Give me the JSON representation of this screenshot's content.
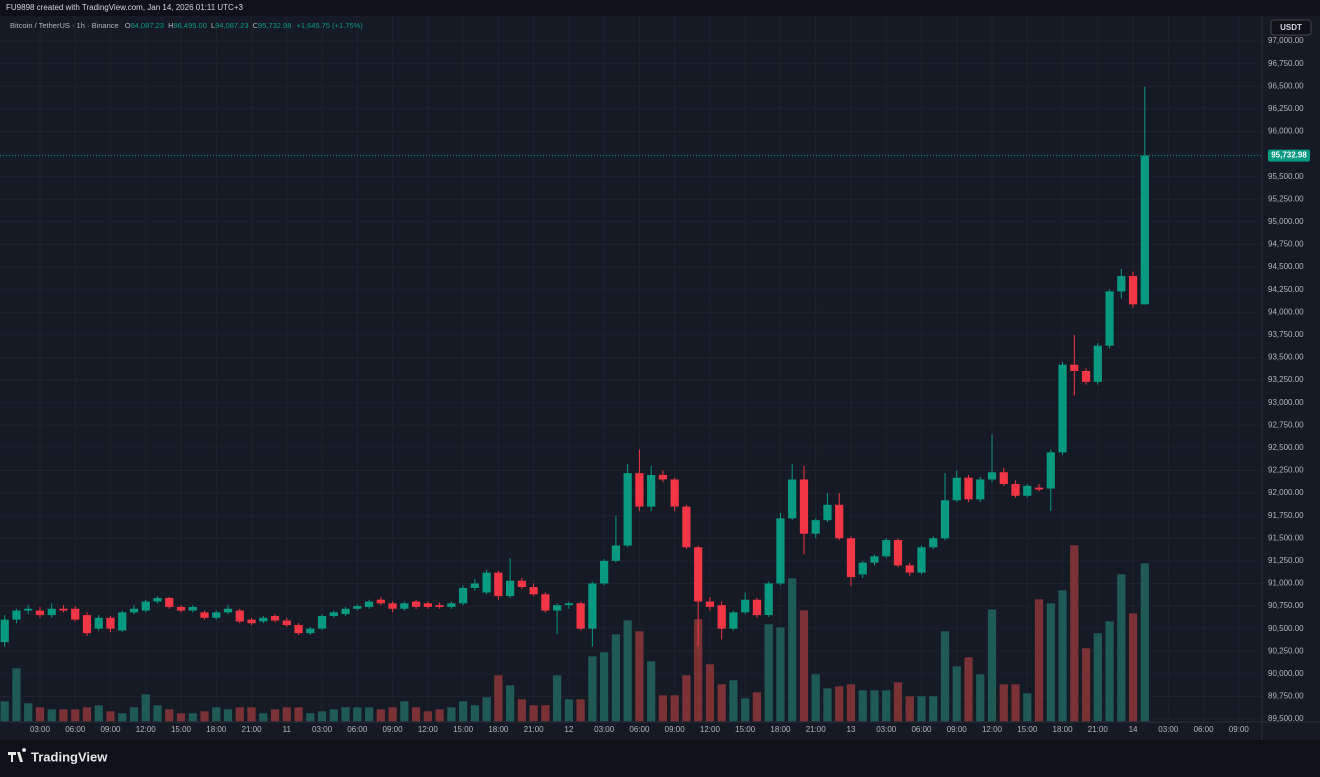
{
  "header": "FU9898 created with TradingView.com, Jan 14, 2026 01:11 UTC+3",
  "logo": "TradingView",
  "chart_data": {
    "type": "candlestick",
    "symbol": "Bitcoin / TetherUS · 1h · Binance",
    "legend": {
      "o_prefix": "O",
      "o": "94,087.23",
      "h_prefix": "H",
      "h": "96,495.00",
      "l_prefix": "L",
      "l": "94,087.23",
      "c_prefix": "C",
      "c": "95,732.98",
      "change": "+1,645.75 (+1.75%)"
    },
    "currency": "USDT",
    "last_price": 95732.98,
    "last_price_label": "95,732.98",
    "up_color": "#089981",
    "down_color": "#f23645",
    "up_volume_color": "#1f5a55",
    "down_volume_color": "#7a3237",
    "grid": true,
    "open": [
      90350,
      90600,
      90700,
      90700,
      90650,
      90720,
      90720,
      90650,
      90500,
      90620,
      90480,
      90680,
      90700,
      90800,
      90840,
      90740,
      90700,
      90680,
      90620,
      90680,
      90700,
      90600,
      90580,
      90640,
      90590,
      90540,
      90450,
      90500,
      90640,
      90660,
      90720,
      90740,
      90820,
      90780,
      90720,
      90800,
      90780,
      90760,
      90740,
      90780,
      90950,
      90900,
      91120,
      90860,
      91030,
      90960,
      90880,
      90700,
      90760,
      90780,
      90500,
      91000,
      91250,
      91420,
      92220,
      91850,
      92200,
      92150,
      91850,
      91400,
      90800,
      90760,
      90500,
      90680,
      90820,
      90650,
      91000,
      91720,
      92150,
      91550,
      91700,
      91870,
      91500,
      91100,
      91230,
      91300,
      91480,
      91200,
      91120,
      91400,
      91500,
      91920,
      92170,
      91930,
      92150,
      92230,
      92100,
      91970,
      92060,
      92050,
      92450,
      93420,
      93350,
      93230,
      93630,
      94230,
      94400,
      94087.23
    ],
    "high": [
      90650,
      90720,
      90760,
      90740,
      90780,
      90760,
      90750,
      90680,
      90650,
      90640,
      90700,
      90760,
      90820,
      90860,
      90850,
      90760,
      90760,
      90700,
      90700,
      90760,
      90720,
      90620,
      90640,
      90660,
      90620,
      90560,
      90520,
      90660,
      90700,
      90740,
      90770,
      90820,
      90850,
      90800,
      90800,
      90820,
      90800,
      90790,
      90800,
      90980,
      91050,
      91150,
      91140,
      91280,
      91060,
      91000,
      90900,
      90780,
      90800,
      90800,
      91020,
      91270,
      91750,
      92320,
      92480,
      92300,
      92250,
      92170,
      91870,
      91420,
      90850,
      90800,
      90700,
      90900,
      90840,
      91020,
      91780,
      92320,
      92300,
      91720,
      92000,
      92000,
      91520,
      91250,
      91320,
      91500,
      91500,
      91230,
      91420,
      91520,
      92220,
      92250,
      92200,
      92180,
      92650,
      92280,
      92140,
      92100,
      92100,
      92480,
      93450,
      93750,
      93380,
      93660,
      94250,
      94480,
      94450,
      96495
    ],
    "low": [
      90300,
      90560,
      90660,
      90620,
      90620,
      90680,
      90580,
      90420,
      90480,
      90460,
      90460,
      90660,
      90680,
      90780,
      90720,
      90680,
      90680,
      90600,
      90600,
      90660,
      90560,
      90540,
      90560,
      90570,
      90520,
      90430,
      90430,
      90480,
      90620,
      90640,
      90700,
      90720,
      90760,
      90680,
      90700,
      90720,
      90720,
      90720,
      90720,
      90760,
      90920,
      90880,
      90820,
      90840,
      90940,
      90860,
      90680,
      90440,
      90720,
      90480,
      90300,
      90980,
      91230,
      91400,
      91800,
      91800,
      92120,
      91800,
      91380,
      90300,
      90700,
      90380,
      90480,
      90660,
      90620,
      90630,
      90980,
      91700,
      91320,
      91500,
      91680,
      91480,
      90970,
      91060,
      91200,
      91280,
      91180,
      91080,
      91100,
      91380,
      91480,
      91900,
      91900,
      91900,
      92120,
      92080,
      91950,
      91950,
      92020,
      91800,
      92420,
      93080,
      93200,
      93200,
      93600,
      94150,
      94050,
      94087.23
    ],
    "close": [
      90600,
      90700,
      90720,
      90650,
      90720,
      90700,
      90600,
      90450,
      90620,
      90500,
      90680,
      90720,
      90800,
      90840,
      90740,
      90700,
      90740,
      90620,
      90680,
      90720,
      90580,
      90560,
      90620,
      90590,
      90540,
      90450,
      90500,
      90640,
      90680,
      90720,
      90750,
      90800,
      90780,
      90720,
      90780,
      90740,
      90740,
      90740,
      90780,
      90950,
      91000,
      91120,
      90860,
      91030,
      90960,
      90880,
      90700,
      90760,
      90780,
      90500,
      91000,
      91250,
      91420,
      92220,
      91850,
      92200,
      92150,
      91850,
      91400,
      90800,
      90740,
      90500,
      90680,
      90820,
      90650,
      91000,
      91720,
      92150,
      91550,
      91700,
      91870,
      91500,
      91070,
      91230,
      91300,
      91480,
      91200,
      91120,
      91400,
      91500,
      91920,
      92170,
      91930,
      92150,
      92230,
      92100,
      91970,
      92080,
      92040,
      92450,
      93420,
      93350,
      93230,
      93630,
      94230,
      94400,
      94087.23,
      95732.98
    ],
    "volume": [
      20,
      53,
      18,
      14,
      12,
      12,
      12,
      14,
      16,
      10,
      8,
      14,
      27,
      16,
      12,
      8,
      8,
      10,
      14,
      12,
      14,
      14,
      8,
      12,
      14,
      14,
      8,
      10,
      12,
      14,
      14,
      14,
      12,
      14,
      20,
      14,
      10,
      12,
      14,
      20,
      16,
      24,
      46,
      36,
      22,
      16,
      16,
      46,
      22,
      22,
      65,
      69,
      87,
      101,
      90,
      60,
      26,
      26,
      46,
      102,
      57,
      37,
      41,
      23,
      29,
      97,
      94,
      143,
      111,
      47,
      33,
      35,
      37,
      31,
      31,
      31,
      39,
      25,
      25,
      25,
      90,
      55,
      64,
      47,
      112,
      37,
      37,
      28,
      122,
      118,
      131,
      176,
      73,
      88,
      100,
      147,
      108,
      158
    ],
    "xlim": [
      -0.4,
      106.8
    ],
    "xticks": [
      {
        "value": 3,
        "label": "03:00"
      },
      {
        "value": 6,
        "label": "06:00"
      },
      {
        "value": 9,
        "label": "09:00"
      },
      {
        "value": 12,
        "label": "12:00"
      },
      {
        "value": 15,
        "label": "15:00"
      },
      {
        "value": 18,
        "label": "18:00"
      },
      {
        "value": 21,
        "label": "21:00"
      },
      {
        "value": 24,
        "label": "11"
      },
      {
        "value": 27,
        "label": "03:00"
      },
      {
        "value": 30,
        "label": "06:00"
      },
      {
        "value": 33,
        "label": "09:00"
      },
      {
        "value": 36,
        "label": "12:00"
      },
      {
        "value": 39,
        "label": "15:00"
      },
      {
        "value": 42,
        "label": "18:00"
      },
      {
        "value": 45,
        "label": "21:00"
      },
      {
        "value": 48,
        "label": "12"
      },
      {
        "value": 51,
        "label": "03:00"
      },
      {
        "value": 54,
        "label": "06:00"
      },
      {
        "value": 57,
        "label": "09:00"
      },
      {
        "value": 60,
        "label": "12:00"
      },
      {
        "value": 63,
        "label": "15:00"
      },
      {
        "value": 66,
        "label": "18:00"
      },
      {
        "value": 69,
        "label": "21:00"
      },
      {
        "value": 72,
        "label": "13"
      },
      {
        "value": 75,
        "label": "03:00"
      },
      {
        "value": 78,
        "label": "06:00"
      },
      {
        "value": 81,
        "label": "09:00"
      },
      {
        "value": 84,
        "label": "12:00"
      },
      {
        "value": 87,
        "label": "15:00"
      },
      {
        "value": 90,
        "label": "18:00"
      },
      {
        "value": 93,
        "label": "21:00"
      },
      {
        "value": 96,
        "label": "14"
      },
      {
        "value": 99,
        "label": "03:00"
      },
      {
        "value": 102,
        "label": "06:00"
      },
      {
        "value": 105,
        "label": "09:00"
      }
    ],
    "ylim": [
      89475,
      97120
    ],
    "yticks": [
      {
        "value": 97000,
        "label": "97,000.00"
      },
      {
        "value": 96750,
        "label": "96,750.00"
      },
      {
        "value": 96500,
        "label": "96,500.00"
      },
      {
        "value": 96250,
        "label": "96,250.00"
      },
      {
        "value": 96000,
        "label": "96,000.00"
      },
      {
        "value": 95750,
        "label": "95,750.00"
      },
      {
        "value": 95500,
        "label": "95,500.00"
      },
      {
        "value": 95250,
        "label": "95,250.00"
      },
      {
        "value": 95000,
        "label": "95,000.00"
      },
      {
        "value": 94750,
        "label": "94,750.00"
      },
      {
        "value": 94500,
        "label": "94,500.00"
      },
      {
        "value": 94250,
        "label": "94,250.00"
      },
      {
        "value": 94000,
        "label": "94,000.00"
      },
      {
        "value": 93750,
        "label": "93,750.00"
      },
      {
        "value": 93500,
        "label": "93,500.00"
      },
      {
        "value": 93250,
        "label": "93,250.00"
      },
      {
        "value": 93000,
        "label": "93,000.00"
      },
      {
        "value": 92750,
        "label": "92,750.00"
      },
      {
        "value": 92500,
        "label": "92,500.00"
      },
      {
        "value": 92250,
        "label": "92,250.00"
      },
      {
        "value": 92000,
        "label": "92,000.00"
      },
      {
        "value": 91750,
        "label": "91,750.00"
      },
      {
        "value": 91500,
        "label": "91,500.00"
      },
      {
        "value": 91250,
        "label": "91,250.00"
      },
      {
        "value": 91000,
        "label": "91,000.00"
      },
      {
        "value": 90750,
        "label": "90,750.00"
      },
      {
        "value": 90500,
        "label": "90,500.00"
      },
      {
        "value": 90250,
        "label": "90,250.00"
      },
      {
        "value": 90000,
        "label": "90,000.00"
      },
      {
        "value": 89750,
        "label": "89,750.00"
      },
      {
        "value": 89500,
        "label": "89,500.00"
      }
    ]
  }
}
